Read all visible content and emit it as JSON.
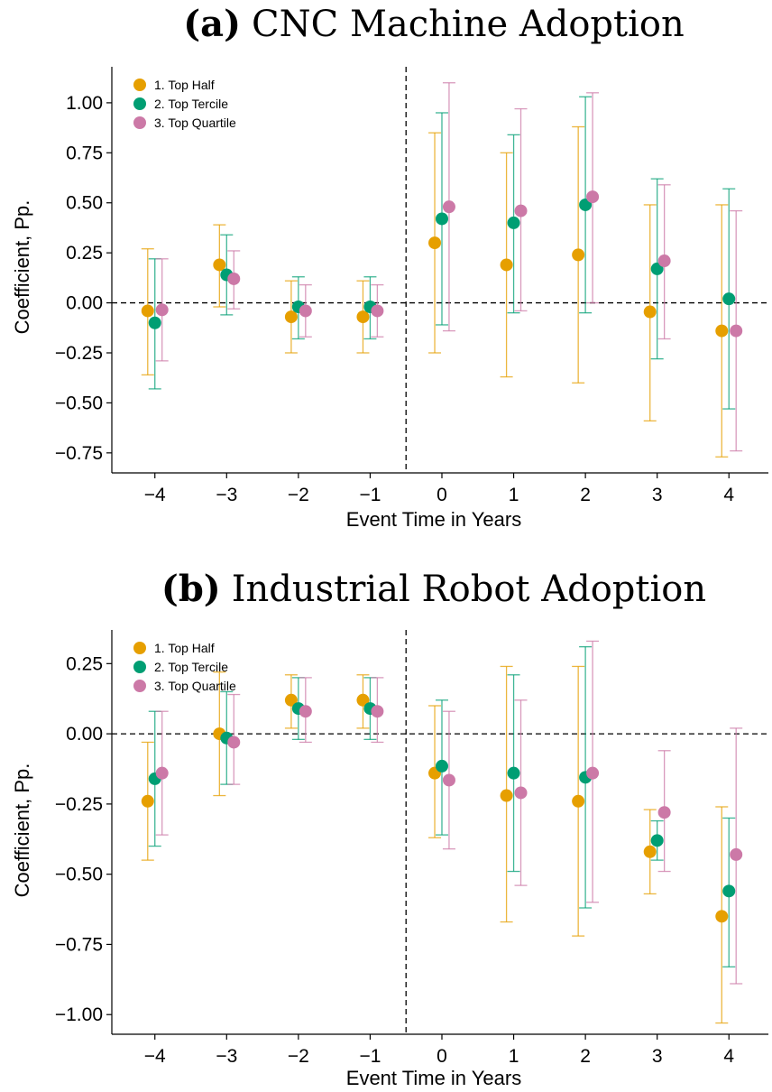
{
  "chart_data": [
    {
      "type": "scatter",
      "tag": "(a)",
      "title": "CNC Machine Adoption",
      "xlabel": "Event Time in Years",
      "ylabel": "Coefficient, Pp.",
      "x": [
        -4,
        -3,
        -2,
        -1,
        0,
        1,
        2,
        3,
        4
      ],
      "xticks": [
        "−4",
        "−3",
        "−2",
        "−1",
        "0",
        "1",
        "2",
        "3",
        "4"
      ],
      "ylim": [
        -0.85,
        1.18
      ],
      "yticks": [
        1.0,
        0.75,
        0.5,
        0.25,
        0.0,
        -0.25,
        -0.5,
        -0.75
      ],
      "ytick_labels": [
        "1.00",
        "0.75",
        "0.50",
        "0.25",
        "0.00",
        "−0.25",
        "−0.50",
        "−0.75"
      ],
      "reference_line_y": 0,
      "event_line_x": -0.5,
      "legend_position": "top-left",
      "grid": false,
      "series": [
        {
          "name": "1. Top Half",
          "color": "#E69F00",
          "values": [
            -0.04,
            0.19,
            -0.07,
            -0.07,
            0.3,
            0.19,
            0.24,
            -0.045,
            -0.14
          ],
          "lower": [
            -0.36,
            -0.02,
            -0.25,
            -0.25,
            -0.25,
            -0.37,
            -0.4,
            -0.59,
            -0.77
          ],
          "upper": [
            0.27,
            0.39,
            0.11,
            0.11,
            0.85,
            0.75,
            0.88,
            0.49,
            0.49
          ]
        },
        {
          "name": "2. Top Tercile",
          "color": "#009E73",
          "values": [
            -0.1,
            0.14,
            -0.02,
            -0.02,
            0.42,
            0.4,
            0.49,
            0.17,
            0.02
          ],
          "lower": [
            -0.43,
            -0.06,
            -0.18,
            -0.18,
            -0.11,
            -0.05,
            -0.05,
            -0.28,
            -0.53
          ],
          "upper": [
            0.22,
            0.34,
            0.13,
            0.13,
            0.95,
            0.84,
            1.03,
            0.62,
            0.57
          ]
        },
        {
          "name": "3. Top Quartile",
          "color": "#CC79A7",
          "values": [
            -0.035,
            0.12,
            -0.04,
            -0.04,
            0.48,
            0.46,
            0.53,
            0.21,
            -0.14
          ],
          "lower": [
            -0.29,
            -0.03,
            -0.17,
            -0.17,
            -0.14,
            -0.04,
            0.0,
            -0.18,
            -0.74
          ],
          "upper": [
            0.22,
            0.26,
            0.09,
            0.09,
            1.1,
            0.97,
            1.05,
            0.59,
            0.46
          ]
        }
      ]
    },
    {
      "type": "scatter",
      "tag": "(b)",
      "title": "Industrial Robot Adoption",
      "xlabel": "Event Time in Years",
      "ylabel": "Coefficient, Pp.",
      "x": [
        -4,
        -3,
        -2,
        -1,
        0,
        1,
        2,
        3,
        4
      ],
      "xticks": [
        "−4",
        "−3",
        "−2",
        "−1",
        "0",
        "1",
        "2",
        "3",
        "4"
      ],
      "ylim": [
        -1.07,
        0.37
      ],
      "yticks": [
        0.25,
        0.0,
        -0.25,
        -0.5,
        -0.75,
        -1.0
      ],
      "ytick_labels": [
        "0.25",
        "0.00",
        "−0.25",
        "−0.50",
        "−0.75",
        "−1.00"
      ],
      "reference_line_y": 0,
      "event_line_x": -0.5,
      "legend_position": "top-left",
      "grid": false,
      "series": [
        {
          "name": "1. Top Half",
          "color": "#E69F00",
          "values": [
            -0.24,
            0.0,
            0.12,
            0.12,
            -0.14,
            -0.22,
            -0.24,
            -0.42,
            -0.65
          ],
          "lower": [
            -0.45,
            -0.22,
            0.02,
            0.02,
            -0.37,
            -0.67,
            -0.72,
            -0.57,
            -1.03
          ],
          "upper": [
            -0.03,
            0.22,
            0.21,
            0.21,
            0.1,
            0.24,
            0.24,
            -0.27,
            -0.26
          ]
        },
        {
          "name": "2. Top Tercile",
          "color": "#009E73",
          "values": [
            -0.16,
            -0.015,
            0.09,
            0.09,
            -0.115,
            -0.14,
            -0.155,
            -0.38,
            -0.56
          ],
          "lower": [
            -0.4,
            -0.18,
            -0.02,
            -0.02,
            -0.36,
            -0.49,
            -0.62,
            -0.45,
            -0.83
          ],
          "upper": [
            0.08,
            0.15,
            0.2,
            0.2,
            0.12,
            0.21,
            0.31,
            -0.31,
            -0.3
          ]
        },
        {
          "name": "3. Top Quartile",
          "color": "#CC79A7",
          "values": [
            -0.14,
            -0.03,
            0.08,
            0.08,
            -0.165,
            -0.21,
            -0.14,
            -0.28,
            -0.43
          ],
          "lower": [
            -0.36,
            -0.18,
            -0.03,
            -0.03,
            -0.41,
            -0.54,
            -0.6,
            -0.49,
            -0.89
          ],
          "upper": [
            0.08,
            0.14,
            0.2,
            0.2,
            0.08,
            0.12,
            0.33,
            -0.06,
            0.02
          ]
        }
      ]
    }
  ]
}
